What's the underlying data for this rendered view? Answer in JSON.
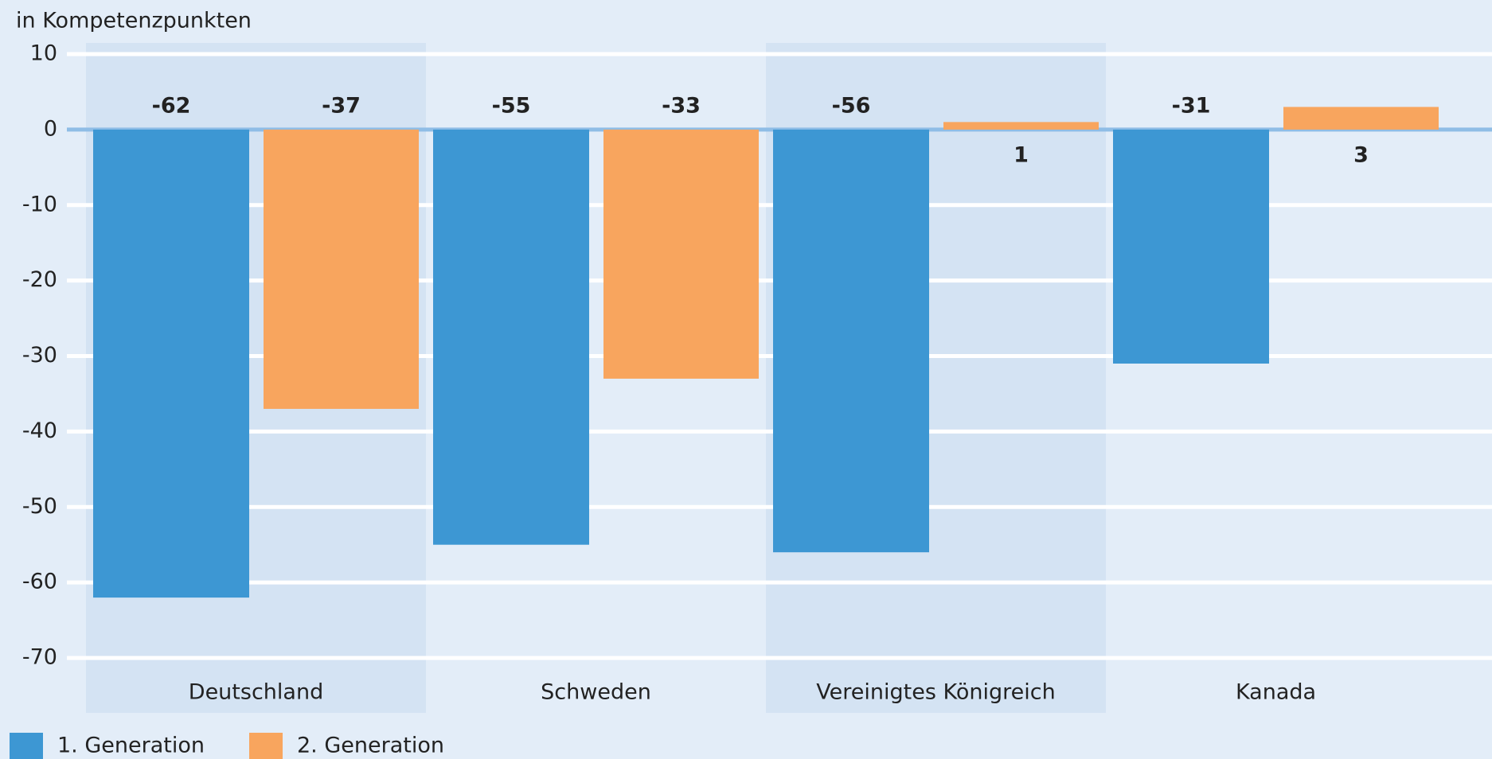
{
  "chart_data": {
    "type": "bar",
    "y_label": "in Kompetenzpunkten",
    "categories": [
      "Deutschland",
      "Schweden",
      "Vereinigtes Königreich",
      "Kanada"
    ],
    "series": [
      {
        "name": "1. Generation",
        "color": "#3d97d3",
        "values": [
          -62,
          -55,
          -56,
          -31
        ]
      },
      {
        "name": "2. Generation",
        "color": "#f8a55e",
        "values": [
          -37,
          -33,
          1,
          3
        ]
      }
    ],
    "ylim": [
      -70,
      10
    ],
    "yticks": [
      -70,
      -60,
      -50,
      -40,
      -30,
      -20,
      -10,
      0,
      10
    ],
    "grid": true,
    "legend": "bottom-left"
  }
}
